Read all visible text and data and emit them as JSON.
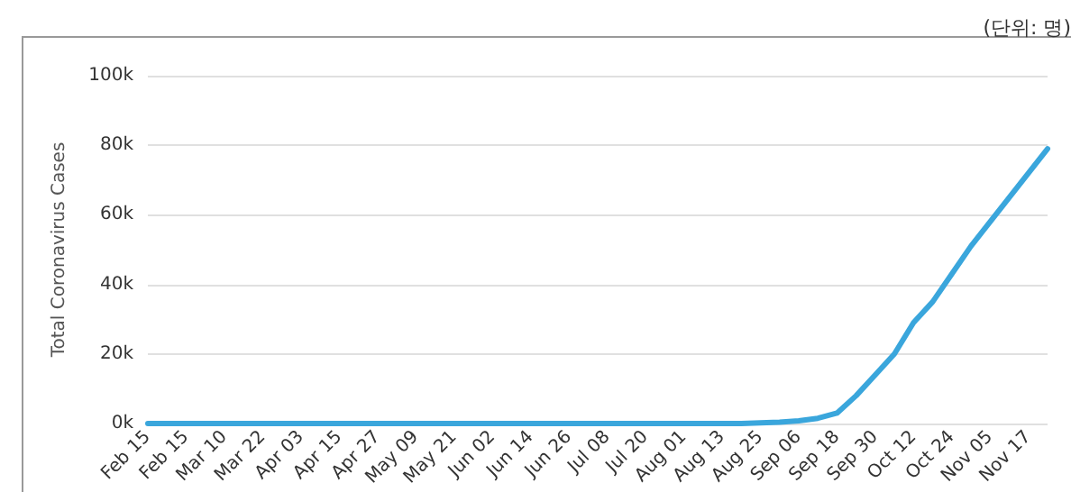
{
  "chart_data": {
    "type": "line",
    "ylabel": "Total Coronavirus Cases",
    "annotations": [
      "(단위: 명)"
    ],
    "categories": [
      "Feb 15",
      null,
      "Feb 15",
      null,
      "Mar 10",
      null,
      "Mar 22",
      null,
      "Apr 03",
      null,
      "Apr 15",
      null,
      "Apr 27",
      null,
      "May 09",
      null,
      "May 21",
      null,
      "Jun 02",
      null,
      "Jun 14",
      null,
      "Jun 26",
      null,
      "Jul 08",
      null,
      "Jul 20",
      null,
      "Aug 01",
      null,
      "Aug 13",
      null,
      "Aug 25",
      null,
      "Sep 06",
      null,
      "Sep 18",
      null,
      "Sep 30",
      null,
      "Oct 12",
      null,
      "Oct 24",
      null,
      "Nov 05",
      null,
      "Nov 17",
      null
    ],
    "series": [
      {
        "color": "#3aa6dc",
        "values": [
          0,
          0,
          0,
          0,
          0,
          0,
          0,
          0,
          0,
          0,
          0,
          0,
          0,
          0,
          0,
          0,
          0,
          0,
          0,
          0,
          0,
          0,
          0,
          0,
          0,
          0,
          0,
          0,
          0,
          0,
          0,
          0,
          200,
          400,
          800,
          1500,
          3000,
          8000,
          14000,
          20000,
          29000,
          35000,
          43000,
          51000,
          58000,
          65000,
          72000,
          79000
        ]
      }
    ],
    "ylim": [
      0,
      100000
    ],
    "yticks": [
      {
        "value": 0,
        "label": "0k"
      },
      {
        "value": 20000,
        "label": "20k"
      },
      {
        "value": 40000,
        "label": "40k"
      },
      {
        "value": 60000,
        "label": "60k"
      },
      {
        "value": 80000,
        "label": "80k"
      },
      {
        "value": 100000,
        "label": "100k"
      }
    ],
    "grid": "y",
    "marker": "none",
    "line_style": "solid"
  }
}
